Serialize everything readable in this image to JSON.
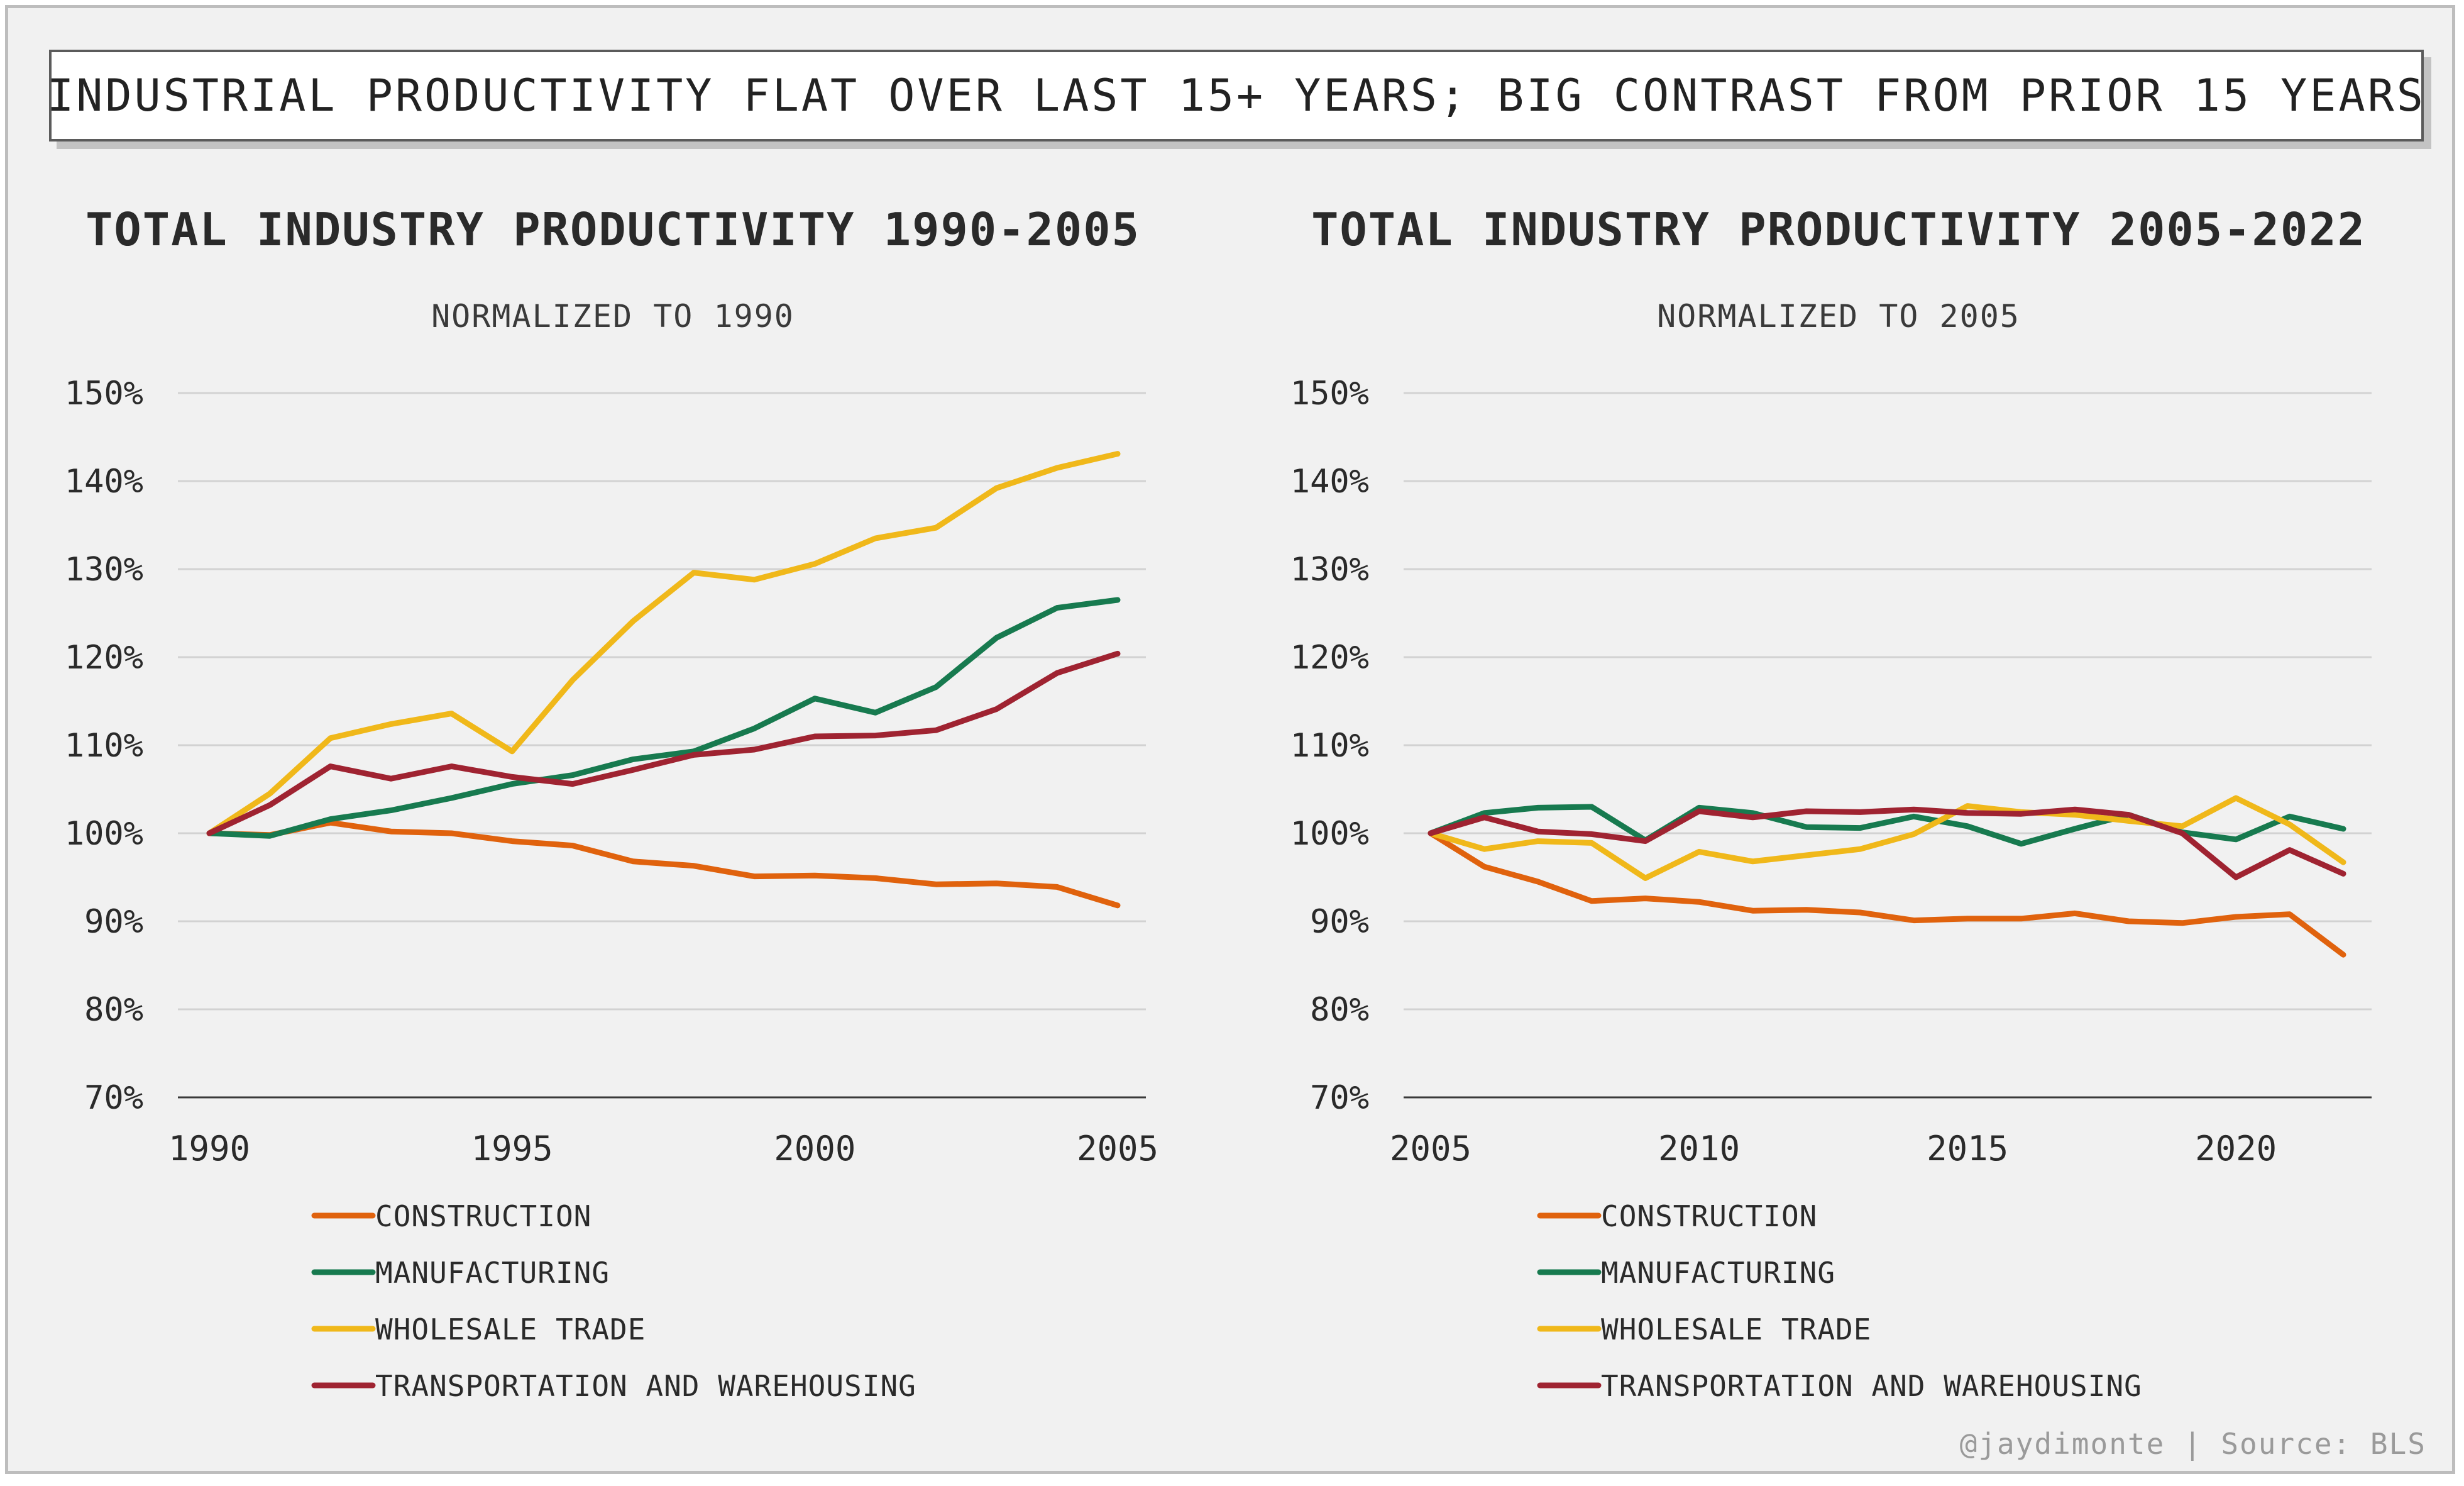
{
  "banner": "INDUSTRIAL PRODUCTIVITY FLAT OVER LAST 15+ YEARS; BIG CONTRAST FROM PRIOR 15 YEARS",
  "credit": "@jaydimonte | Source: BLS",
  "colors": {
    "CONSTRUCTION": "#e0620d",
    "MANUFACTURING": "#177a4f",
    "WHOLESALE TRADE": "#f0b81a",
    "TRANSPORTATION AND WAREHOUSING": "#9f2331",
    "grid": "#d2d2d2",
    "axis": "#3a3a3a"
  },
  "chart_data": [
    {
      "type": "line",
      "title": "TOTAL INDUSTRY PRODUCTIVITY 1990-2005",
      "subtitle": "NORMALIZED TO 1990",
      "xlabel": "",
      "ylabel": "",
      "xlim": [
        1990,
        2005
      ],
      "ylim": [
        70,
        150
      ],
      "x_ticks": [
        "1990",
        "1995",
        "2000",
        "2005"
      ],
      "y_ticks": [
        "70%",
        "80%",
        "90%",
        "100%",
        "110%",
        "120%",
        "130%",
        "140%",
        "150%"
      ],
      "grid": true,
      "legend_position": "bottom-left",
      "x": [
        1990,
        1991,
        1992,
        1993,
        1994,
        1995,
        1996,
        1997,
        1998,
        1999,
        2000,
        2001,
        2002,
        2003,
        2004,
        2005
      ],
      "series": [
        {
          "name": "CONSTRUCTION",
          "values": [
            100,
            99.8,
            101.2,
            100.2,
            100,
            99.1,
            98.6,
            96.8,
            96.3,
            95.1,
            95.2,
            94.9,
            94.2,
            94.3,
            93.9,
            91.8
          ]
        },
        {
          "name": "MANUFACTURING",
          "values": [
            100,
            99.7,
            101.6,
            102.6,
            104,
            105.6,
            106.6,
            108.4,
            109.3,
            111.9,
            115.3,
            113.7,
            116.6,
            122.2,
            125.6,
            126.5
          ]
        },
        {
          "name": "WHOLESALE TRADE",
          "values": [
            100,
            104.5,
            110.8,
            112.4,
            113.6,
            109.3,
            117.4,
            124.1,
            129.6,
            128.8,
            130.6,
            133.5,
            134.7,
            139.2,
            141.5,
            143.1
          ]
        },
        {
          "name": "TRANSPORTATION AND WAREHOUSING",
          "values": [
            100,
            103.2,
            107.6,
            106.2,
            107.6,
            106.4,
            105.6,
            107.2,
            108.9,
            109.5,
            111,
            111.1,
            111.7,
            114.1,
            118.2,
            120.4
          ]
        }
      ]
    },
    {
      "type": "line",
      "title": "TOTAL INDUSTRY PRODUCTIVITY 2005-2022",
      "subtitle": "NORMALIZED TO 2005",
      "xlabel": "",
      "ylabel": "",
      "xlim": [
        2005,
        2022
      ],
      "ylim": [
        70,
        150
      ],
      "x_ticks": [
        "2005",
        "2010",
        "2015",
        "2020"
      ],
      "y_ticks": [
        "70%",
        "80%",
        "90%",
        "100%",
        "110%",
        "120%",
        "130%",
        "140%",
        "150%"
      ],
      "grid": true,
      "legend_position": "bottom-left",
      "x": [
        2005,
        2006,
        2007,
        2008,
        2009,
        2010,
        2011,
        2012,
        2013,
        2014,
        2015,
        2016,
        2017,
        2018,
        2019,
        2020,
        2021,
        2022
      ],
      "series": [
        {
          "name": "CONSTRUCTION",
          "values": [
            100,
            96.2,
            94.5,
            92.3,
            92.6,
            92.2,
            91.2,
            91.3,
            91,
            90.1,
            90.3,
            90.3,
            90.9,
            90,
            89.8,
            90.5,
            90.8,
            86.2
          ]
        },
        {
          "name": "MANUFACTURING",
          "values": [
            100,
            102.3,
            102.9,
            103,
            99.2,
            102.9,
            102.3,
            100.7,
            100.6,
            101.9,
            100.8,
            98.8,
            100.5,
            102.1,
            100.1,
            99.3,
            101.9,
            100.5
          ]
        },
        {
          "name": "WHOLESALE TRADE",
          "values": [
            100,
            98.2,
            99.1,
            98.9,
            94.9,
            97.9,
            96.8,
            97.5,
            98.2,
            99.9,
            103.1,
            102.4,
            102.1,
            101.4,
            100.8,
            104,
            101,
            96.7
          ]
        },
        {
          "name": "TRANSPORTATION AND WAREHOUSING",
          "values": [
            100,
            101.8,
            100.2,
            99.9,
            99.1,
            102.5,
            101.8,
            102.5,
            102.4,
            102.7,
            102.3,
            102.2,
            102.7,
            102.1,
            100,
            95,
            98.1,
            95.4
          ]
        }
      ]
    }
  ]
}
